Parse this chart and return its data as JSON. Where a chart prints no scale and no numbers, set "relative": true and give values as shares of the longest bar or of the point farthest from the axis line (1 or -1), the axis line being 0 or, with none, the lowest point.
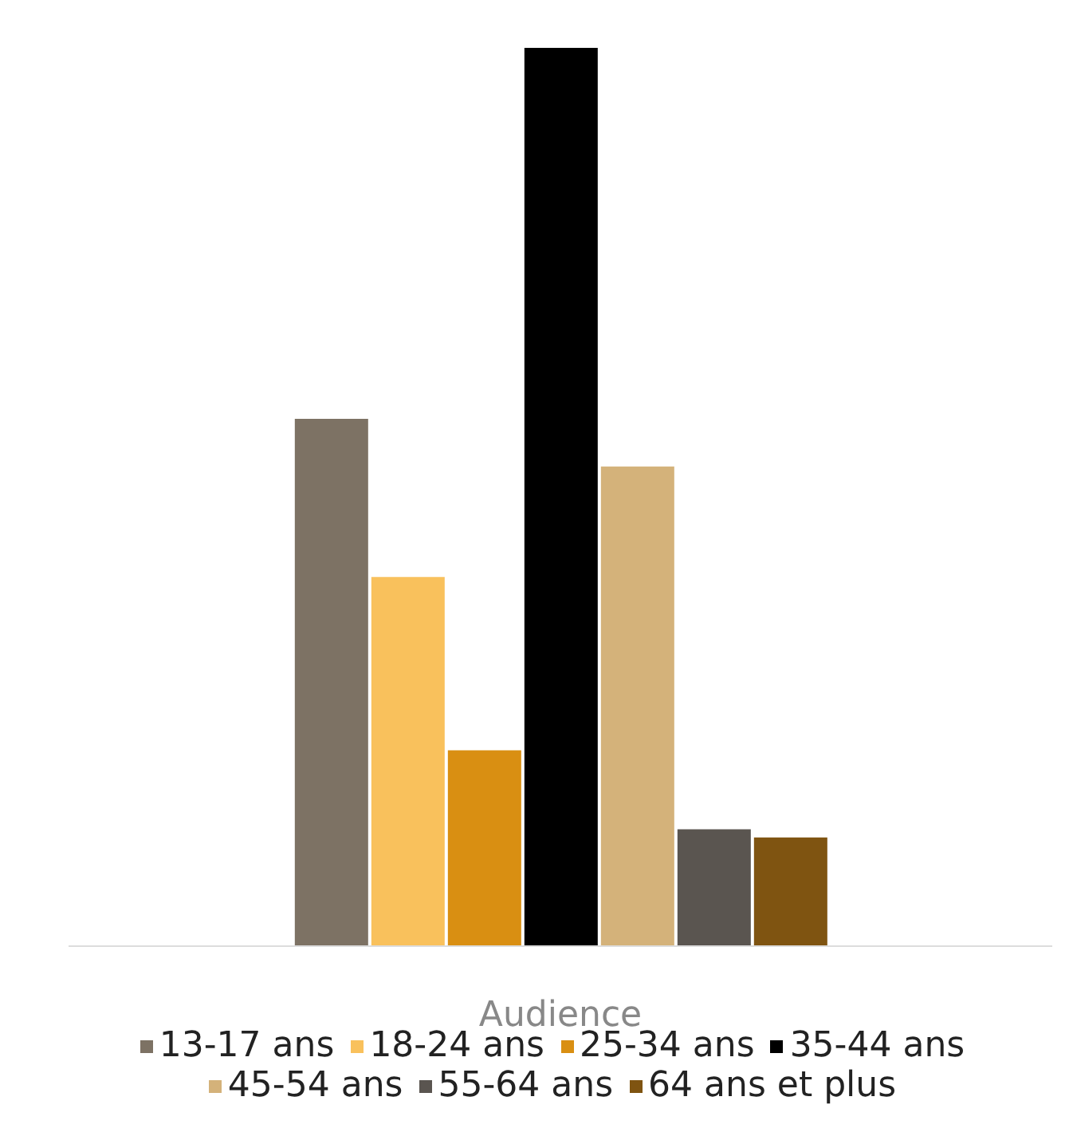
{
  "chart_data": {
    "type": "bar",
    "relative": true,
    "xlabel": "Audience",
    "categories": [
      null
    ],
    "series": [
      {
        "name": "13-17 ans",
        "color": "#7d7264",
        "values": [
          0.587
        ]
      },
      {
        "name": "18-24 ans",
        "color": "#f9c15c",
        "values": [
          0.411
        ]
      },
      {
        "name": "25-34 ans",
        "color": "#d98f12",
        "values": [
          0.218
        ]
      },
      {
        "name": "35-44 ans",
        "color": "#000000",
        "values": [
          1
        ]
      },
      {
        "name": "45-54 ans",
        "color": "#d4b27a",
        "values": [
          0.534
        ]
      },
      {
        "name": "55-64 ans",
        "color": "#5a5550",
        "values": [
          0.13
        ]
      },
      {
        "name": "64 ans et plus",
        "color": "#7f5411",
        "values": [
          0.121
        ]
      }
    ],
    "grid": false,
    "legend": "bottom"
  }
}
